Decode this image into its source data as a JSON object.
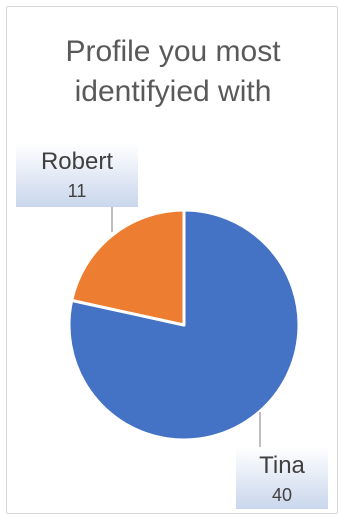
{
  "chart_data": {
    "type": "pie",
    "title_lines": [
      "Profile you most",
      "identifyied with"
    ],
    "slices": [
      {
        "label": "Tina",
        "value": 40,
        "color": "#4472c4"
      },
      {
        "label": "Robert",
        "value": 11,
        "color": "#ed7d31"
      }
    ],
    "data_labels": "category-and-value",
    "legend": "none"
  }
}
